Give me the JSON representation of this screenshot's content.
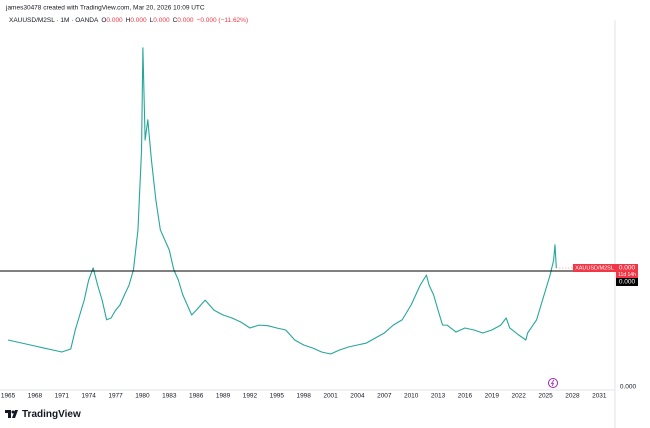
{
  "chart_data": {
    "type": "line",
    "attribution": "james30478 created with TradingView.com, Mar 20, 2026 10:09 UTC",
    "symbol": "XAUUSD/M2SL · 1M · OANDA",
    "ohlc": [
      {
        "key": "O",
        "value": "0.000"
      },
      {
        "key": "H",
        "value": "0.000"
      },
      {
        "key": "L",
        "value": "0.000"
      },
      {
        "key": "C",
        "value": "0.000"
      }
    ],
    "change": "−0.000 (−11.62%)",
    "brand": "TradingView",
    "x": [
      1965,
      1966,
      1967,
      1968,
      1969,
      1970,
      1971,
      1972,
      1972.5,
      1973,
      1973.5,
      1974,
      1974.5,
      1975,
      1975.5,
      1976,
      1976.5,
      1977,
      1977.5,
      1978,
      1978.5,
      1979,
      1979.5,
      1979.9,
      1980.05,
      1980.3,
      1980.6,
      1981,
      1981.5,
      1982,
      1982.5,
      1983,
      1983.5,
      1984,
      1984.5,
      1985,
      1985.5,
      1986,
      1987,
      1988,
      1989,
      1990,
      1991,
      1992,
      1993,
      1994,
      1995,
      1996,
      1997,
      1998,
      1999,
      2000,
      2001,
      2002,
      2003,
      2004,
      2005,
      2006,
      2007,
      2008,
      2009,
      2010,
      2011,
      2011.7,
      2012,
      2012.5,
      2013,
      2013.5,
      2014,
      2015,
      2016,
      2017,
      2018,
      2019,
      2020,
      2020.6,
      2021,
      2022,
      2022.8,
      2023,
      2024,
      2024.5,
      2025,
      2025.5,
      2025.9,
      2026.05,
      2026.2
    ],
    "series": [
      {
        "name": "XAUUSD/M2SL",
        "color": "#26a69a",
        "values": [
          7.9e-05,
          7.56e-05,
          7.23e-05,
          6.89e-05,
          6.55e-05,
          6.22e-05,
          5.88e-05,
          6.39e-05,
          9.58e-05,
          0.000121,
          0.000146,
          0.00018,
          0.0002,
          0.000171,
          0.000146,
          0.000113,
          0.000116,
          0.000129,
          0.000138,
          0.000155,
          0.000171,
          0.000197,
          0.000264,
          0.000398,
          0.00057,
          0.000415,
          0.000449,
          0.000382,
          0.000314,
          0.000264,
          0.000247,
          0.00023,
          0.000197,
          0.00018,
          0.000155,
          0.000138,
          0.000121,
          0.000129,
          0.000146,
          0.000129,
          0.000121,
          0.000116,
          0.000109,
          9.92e-05,
          0.000104,
          0.000103,
          9.92e-05,
          9.58e-05,
          7.9e-05,
          7.06e-05,
          6.55e-05,
          5.88e-05,
          5.55e-05,
          6.22e-05,
          6.72e-05,
          7.06e-05,
          7.39e-05,
          8.24e-05,
          9.08e-05,
          0.000104,
          0.000113,
          0.000138,
          0.000171,
          0.000188,
          0.000171,
          0.000155,
          0.000129,
          0.000104,
          0.000104,
          9.24e-05,
          9.92e-05,
          9.58e-05,
          9.08e-05,
          9.58e-05,
          0.000104,
          0.000116,
          9.92e-05,
          8.74e-05,
          7.9e-05,
          9.08e-05,
          0.000113,
          0.000138,
          0.000163,
          0.000188,
          0.000213,
          0.000239,
          0.0002
        ]
      }
    ],
    "last_price": {
      "value": 0.0002,
      "label": "0.000",
      "countdown": "11d 14h",
      "color": "#f23645"
    },
    "hline": {
      "value": 0.000195,
      "label": "0.000",
      "color": "#000000"
    },
    "xlim": [
      1964.1,
      2032.75
    ],
    "ylim": [
      0,
      0.0006
    ],
    "xticks": [
      1965,
      1968,
      1971,
      1974,
      1977,
      1980,
      1983,
      1986,
      1989,
      1992,
      1995,
      1998,
      2001,
      2004,
      2007,
      2010,
      2013,
      2016,
      2019,
      2022,
      2025,
      2028,
      2031
    ],
    "yticks": [
      {
        "value": 0,
        "label": "0.000"
      }
    ],
    "grid": false
  }
}
